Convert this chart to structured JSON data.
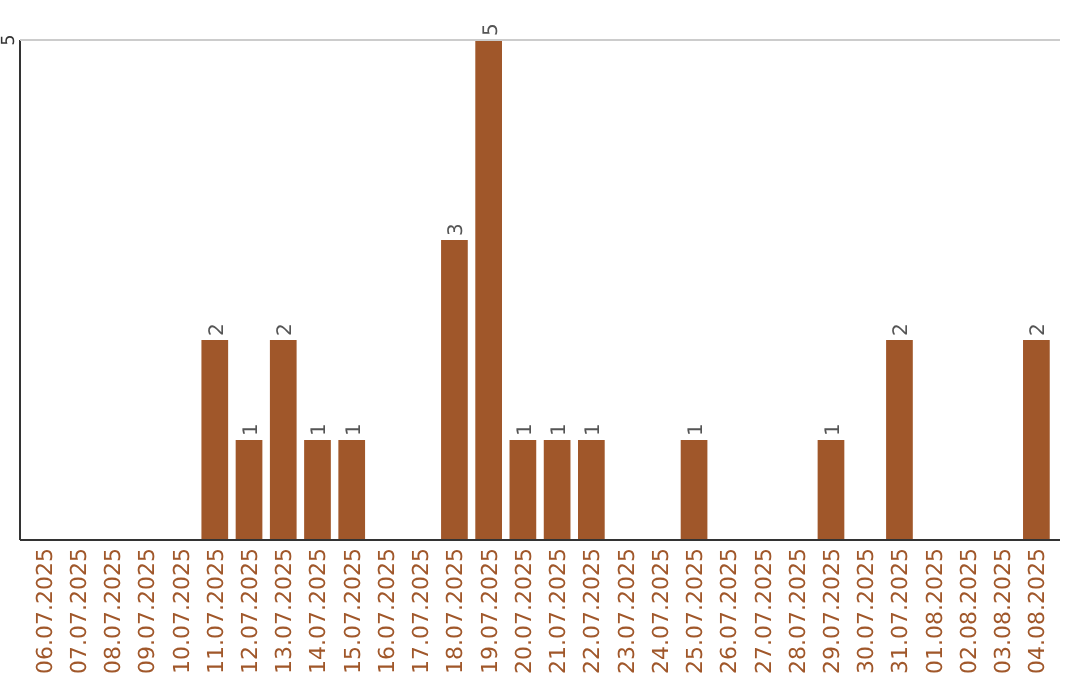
{
  "chart_data": {
    "type": "bar",
    "categories": [
      "06.07.2025",
      "07.07.2025",
      "08.07.2025",
      "09.07.2025",
      "10.07.2025",
      "11.07.2025",
      "12.07.2025",
      "13.07.2025",
      "14.07.2025",
      "15.07.2025",
      "16.07.2025",
      "17.07.2025",
      "18.07.2025",
      "19.07.2025",
      "20.07.2025",
      "21.07.2025",
      "22.07.2025",
      "23.07.2025",
      "24.07.2025",
      "25.07.2025",
      "26.07.2025",
      "27.07.2025",
      "28.07.2025",
      "29.07.2025",
      "30.07.2025",
      "31.07.2025",
      "01.08.2025",
      "02.08.2025",
      "03.08.2025",
      "04.08.2025"
    ],
    "values": [
      0,
      0,
      0,
      0,
      0,
      2,
      1,
      2,
      1,
      1,
      0,
      0,
      3,
      5,
      1,
      1,
      1,
      0,
      0,
      1,
      0,
      0,
      0,
      1,
      0,
      2,
      0,
      0,
      0,
      2
    ],
    "value_labels": [
      null,
      null,
      null,
      null,
      null,
      "2",
      "1",
      "2",
      "1",
      "1",
      null,
      null,
      "3",
      "5",
      "1",
      "1",
      "1",
      null,
      null,
      "1",
      null,
      null,
      null,
      "1",
      null,
      "2",
      null,
      null,
      null,
      "2"
    ],
    "color": "#a0572a",
    "ylim": [
      0,
      5
    ],
    "yticks": [
      5
    ]
  }
}
